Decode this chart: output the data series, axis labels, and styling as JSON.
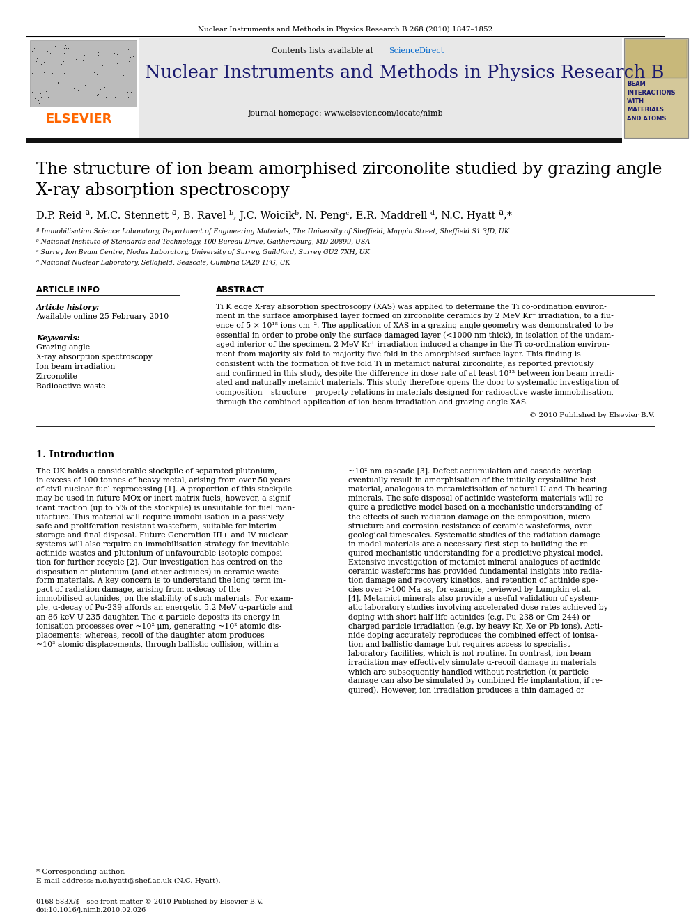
{
  "journal_header_text": "Nuclear Instruments and Methods in Physics Research B 268 (2010) 1847–1852",
  "journal_name": "Nuclear Instruments and Methods in Physics Research B",
  "journal_homepage": "journal homepage: www.elsevier.com/locate/nimb",
  "contents_list": "Contents lists available at ",
  "sciencedirect_text": "ScienceDirect",
  "sciencedirect_color": "#0066cc",
  "elsevier_color": "#FF6600",
  "article_title_line1": "The structure of ion beam amorphised zirconolite studied by grazing angle",
  "article_title_line2": "X-ray absorption spectroscopy",
  "authors": "D.P. Reid ª, M.C. Stennett ª, B. Ravel ᵇ, J.C. Woicikᵇ, N. Pengᶜ, E.R. Maddrell ᵈ, N.C. Hyatt ª,*",
  "affil_a": "ª Immobilisation Science Laboratory, Department of Engineering Materials, The University of Sheffield, Mappin Street, Sheffield S1 3JD, UK",
  "affil_b": "ᵇ National Institute of Standards and Technology, 100 Bureau Drive, Gaithersburg, MD 20899, USA",
  "affil_c": "ᶜ Surrey Ion Beam Centre, Nodus Laboratory, University of Surrey, Guildford, Surrey GU2 7XH, UK",
  "affil_d": "ᵈ National Nuclear Laboratory, Sellafield, Seascale, Cumbria CA20 1PG, UK",
  "article_info_label": "ARTICLE INFO",
  "abstract_label": "ABSTRACT",
  "article_history_label": "Article history:",
  "available_online": "Available online 25 February 2010",
  "keywords_label": "Keywords:",
  "keywords": [
    "Grazing angle",
    "X-ray absorption spectroscopy",
    "Ion beam irradiation",
    "Zirconolite",
    "Radioactive waste"
  ],
  "copyright_text": "© 2010 Published by Elsevier B.V.",
  "intro_heading": "1. Introduction",
  "footnote_star": "* Corresponding author.",
  "footnote_email": "E-mail address: n.c.hyatt@shef.ac.uk (N.C. Hyatt).",
  "footer_line1": "0168-583X/$ - see front matter © 2010 Published by Elsevier B.V.",
  "footer_line2": "doi:10.1016/j.nimb.2010.02.026",
  "header_bg": "#e8e8e8",
  "header_bar_color": "#1a1a6e",
  "beam_box_bg": "#d4c89a",
  "beam_text": "BEAM\nINTERACTIONS\nWITH\nMATERIALS\nAND ATOMS",
  "abstract_lines": [
    "Ti K edge X-ray absorption spectroscopy (XAS) was applied to determine the Ti co-ordination environ-",
    "ment in the surface amorphised layer formed on zirconolite ceramics by 2 MeV Kr⁺ irradiation, to a flu-",
    "ence of 5 × 10¹⁵ ions cm⁻². The application of XAS in a grazing angle geometry was demonstrated to be",
    "essential in order to probe only the surface damaged layer (<1000 nm thick), in isolation of the undam-",
    "aged interior of the specimen. 2 MeV Kr⁺ irradiation induced a change in the Ti co-ordination environ-",
    "ment from majority six fold to majority five fold in the amorphised surface layer. This finding is",
    "consistent with the formation of five fold Ti in metamict natural zirconolite, as reported previously",
    "and confirmed in this study, despite the difference in dose rate of at least 10¹² between ion beam irradi-",
    "ated and naturally metamict materials. This study therefore opens the door to systematic investigation of",
    "composition – structure – property relations in materials designed for radioactive waste immobilisation,",
    "through the combined application of ion beam irradiation and grazing angle XAS."
  ],
  "intro_col1_lines": [
    "The UK holds a considerable stockpile of separated plutonium,",
    "in excess of 100 tonnes of heavy metal, arising from over 50 years",
    "of civil nuclear fuel reprocessing [1]. A proportion of this stockpile",
    "may be used in future MOx or inert matrix fuels, however, a signif-",
    "icant fraction (up to 5% of the stockpile) is unsuitable for fuel man-",
    "ufacture. This material will require immobilisation in a passively",
    "safe and proliferation resistant wasteform, suitable for interim",
    "storage and final disposal. Future Generation III+ and IV nuclear",
    "systems will also require an immobilisation strategy for inevitable",
    "actinide wastes and plutonium of unfavourable isotopic composi-",
    "tion for further recycle [2]. Our investigation has centred on the",
    "disposition of plutonium (and other actinides) in ceramic waste-",
    "form materials. A key concern is to understand the long term im-",
    "pact of radiation damage, arising from α-decay of the",
    "immobilised actinides, on the stability of such materials. For exam-",
    "ple, α-decay of Pu-239 affords an energetic 5.2 MeV α-particle and",
    "an 86 keV U-235 daughter. The α-particle deposits its energy in",
    "ionisation processes over ~10² μm, generating ~10² atomic dis-",
    "placements; whereas, recoil of the daughter atom produces",
    "~10³ atomic displacements, through ballistic collision, within a"
  ],
  "intro_col2_lines": [
    "~10² nm cascade [3]. Defect accumulation and cascade overlap",
    "eventually result in amorphisation of the initially crystalline host",
    "material, analogous to metamictisation of natural U and Th bearing",
    "minerals. The safe disposal of actinide wasteform materials will re-",
    "quire a predictive model based on a mechanistic understanding of",
    "the effects of such radiation damage on the composition, micro-",
    "structure and corrosion resistance of ceramic wasteforms, over",
    "geological timescales. Systematic studies of the radiation damage",
    "in model materials are a necessary first step to building the re-",
    "quired mechanistic understanding for a predictive physical model.",
    "Extensive investigation of metamict mineral analogues of actinide",
    "ceramic wasteforms has provided fundamental insights into radia-",
    "tion damage and recovery kinetics, and retention of actinide spe-",
    "cies over >100 Ma as, for example, reviewed by Lumpkin et al.",
    "[4]. Metamict minerals also provide a useful validation of system-",
    "atic laboratory studies involving accelerated dose rates achieved by",
    "doping with short half life actinides (e.g. Pu-238 or Cm-244) or",
    "charged particle irradiation (e.g. by heavy Kr, Xe or Pb ions). Acti-",
    "nide doping accurately reproduces the combined effect of ionisa-",
    "tion and ballistic damage but requires access to specialist",
    "laboratory facilities, which is not routine. In contrast, ion beam",
    "irradiation may effectively simulate α-recoil damage in materials",
    "which are subsequently handled without restriction (α-particle",
    "damage can also be simulated by combined He implantation, if re-",
    "quired). However, ion irradiation produces a thin damaged or"
  ]
}
